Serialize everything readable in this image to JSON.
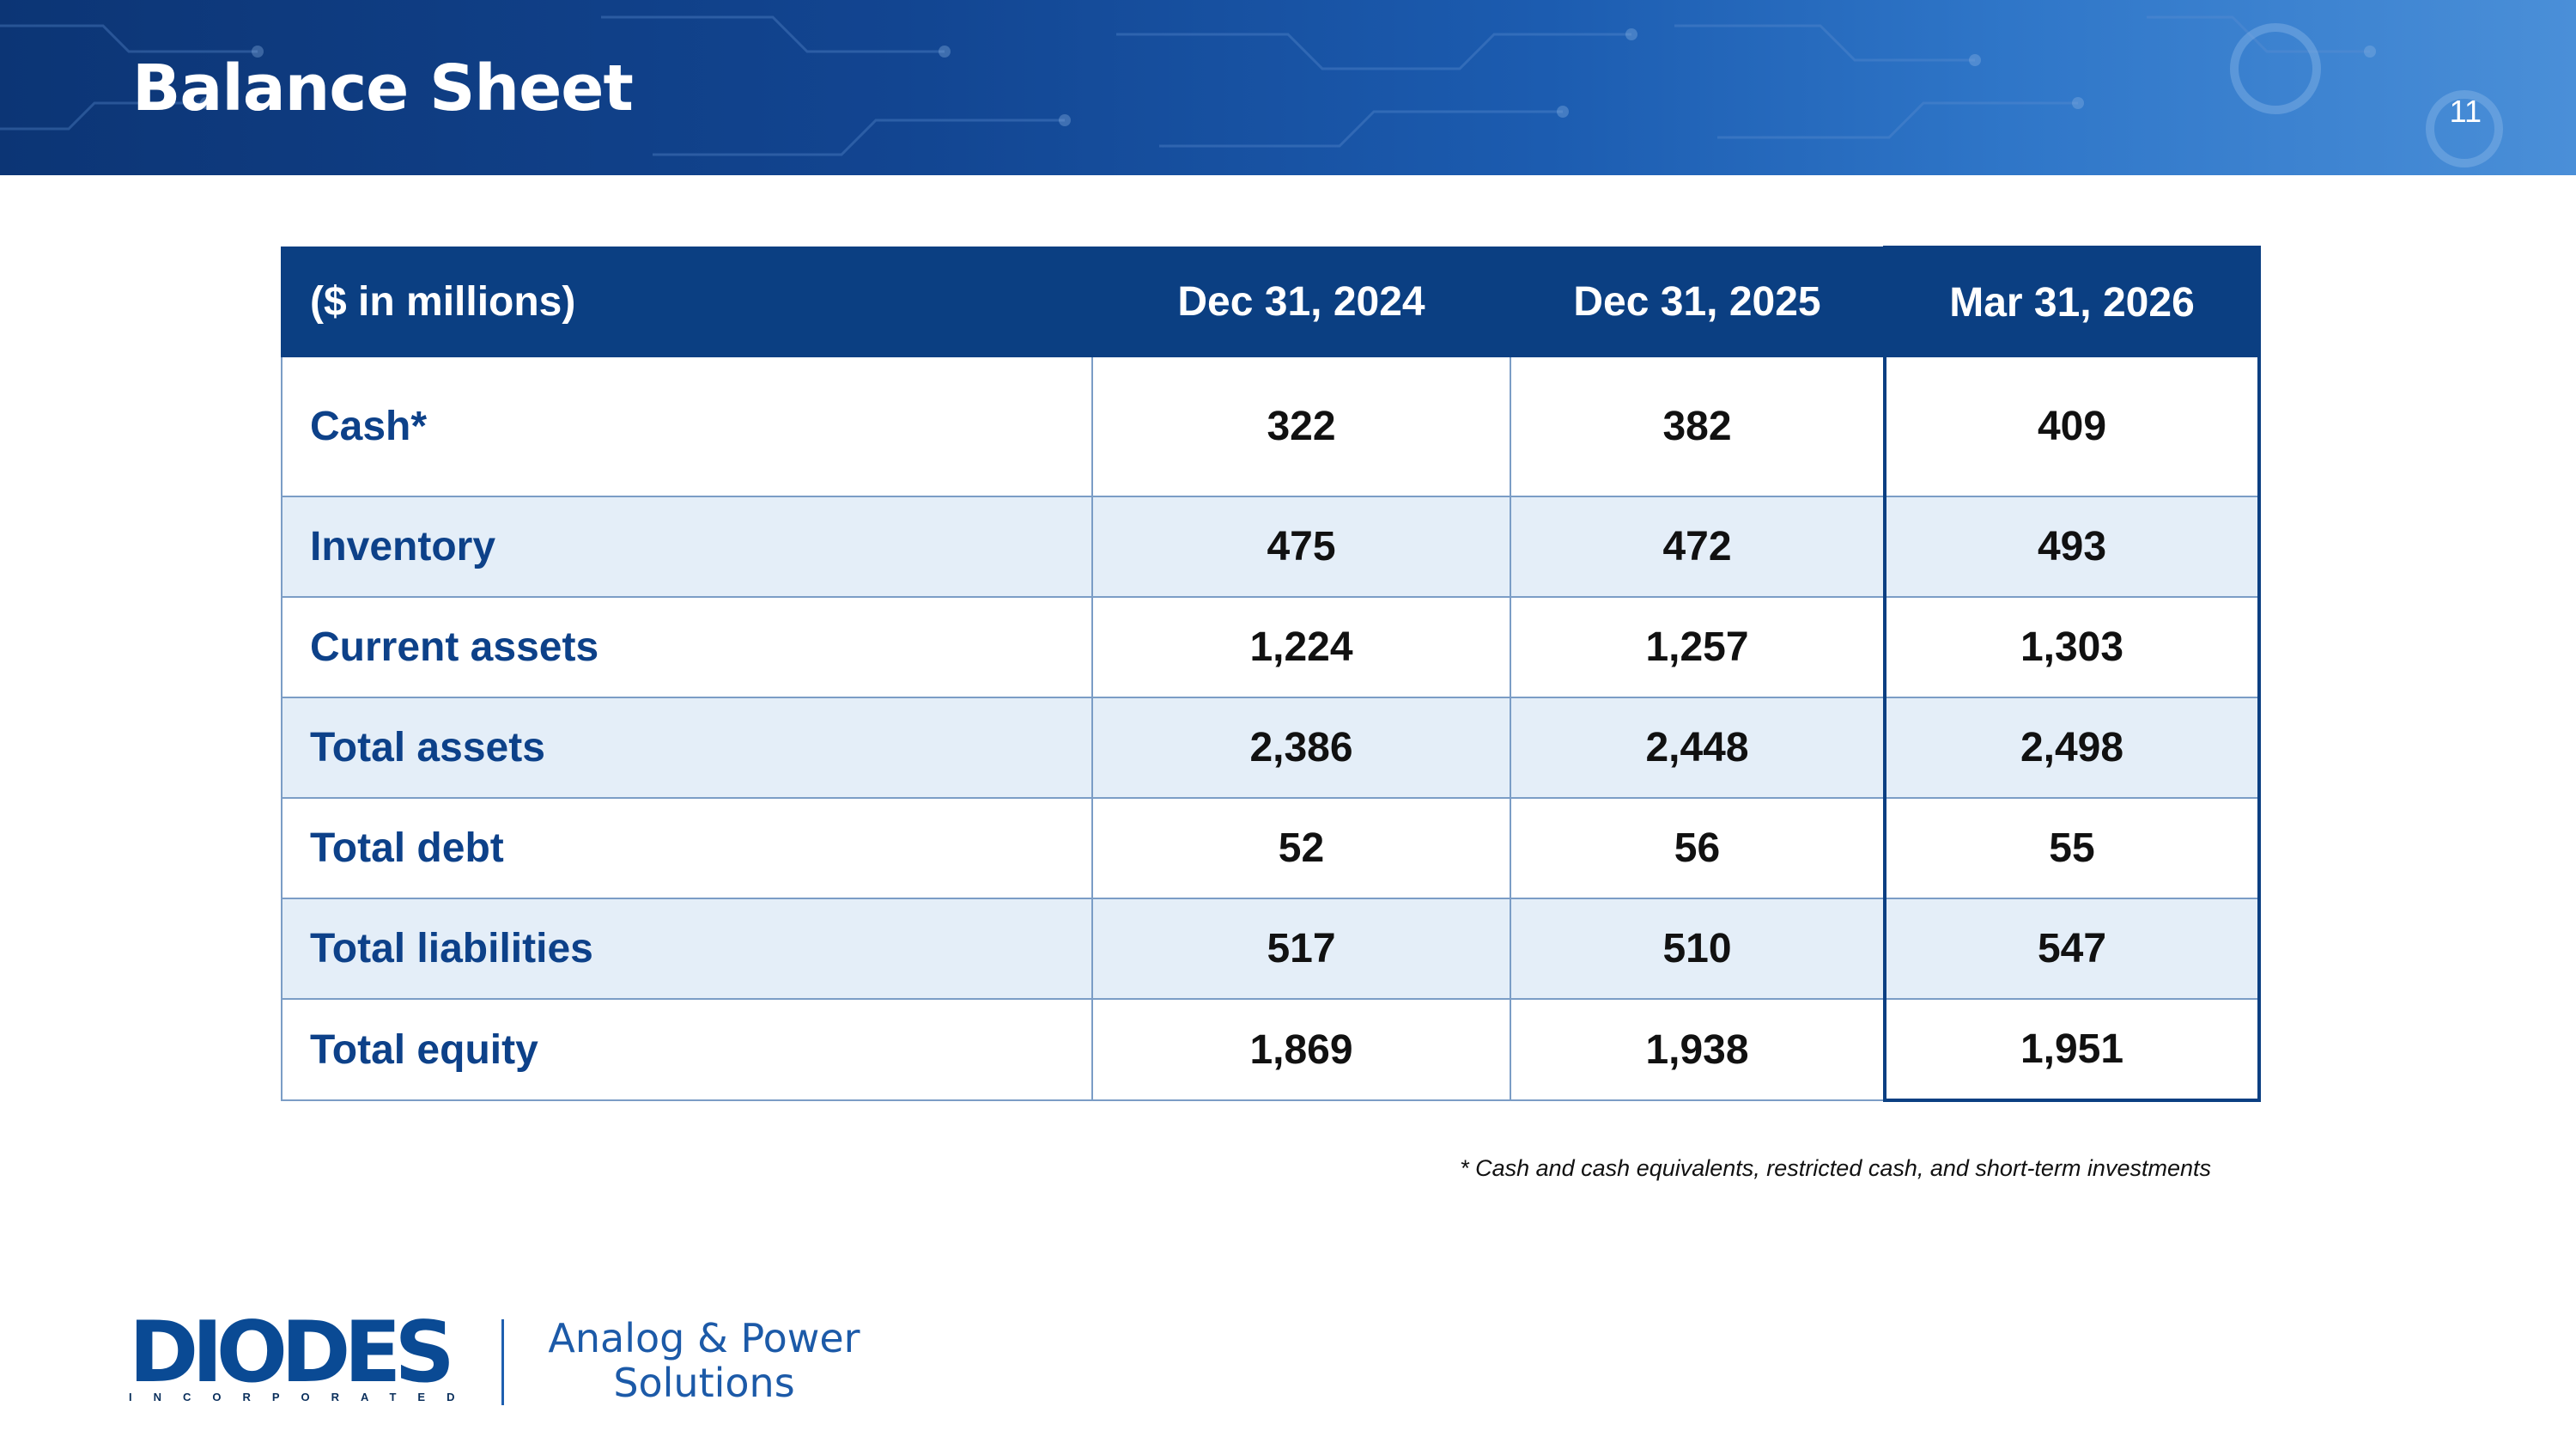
{
  "header": {
    "title": "Balance Sheet",
    "page_number": "11"
  },
  "table": {
    "columns": [
      "($ in millions)",
      "Dec 31, 2024",
      "Dec 31, 2025",
      "Mar 31, 2026"
    ],
    "rows": [
      {
        "label": "Cash*",
        "values": [
          "322",
          "382",
          "409"
        ]
      },
      {
        "label": "Inventory",
        "values": [
          "475",
          "472",
          "493"
        ]
      },
      {
        "label": "Current assets",
        "values": [
          "1,224",
          "1,257",
          "1,303"
        ]
      },
      {
        "label": "Total assets",
        "values": [
          "2,386",
          "2,448",
          "2,498"
        ]
      },
      {
        "label": "Total debt",
        "values": [
          "52",
          "56",
          "55"
        ]
      },
      {
        "label": "Total liabilities",
        "values": [
          "517",
          "510",
          "547"
        ]
      },
      {
        "label": "Total equity",
        "values": [
          "1,869",
          "1,938",
          "1,951"
        ]
      }
    ],
    "highlighted_column": "Mar 31, 2026"
  },
  "footnote": "* Cash and cash equivalents, restricted cash, and short-term investments",
  "logo": {
    "wordmark": "DIODES",
    "subtitle": "INCORPORATED",
    "tagline_line1": "Analog & Power",
    "tagline_line2": "Solutions"
  },
  "colors": {
    "banner": "#124591",
    "header_row": "#0b3f82",
    "label_text": "#0d4189",
    "alt_row": "#e4eef8",
    "logo": "#0a4a94"
  }
}
